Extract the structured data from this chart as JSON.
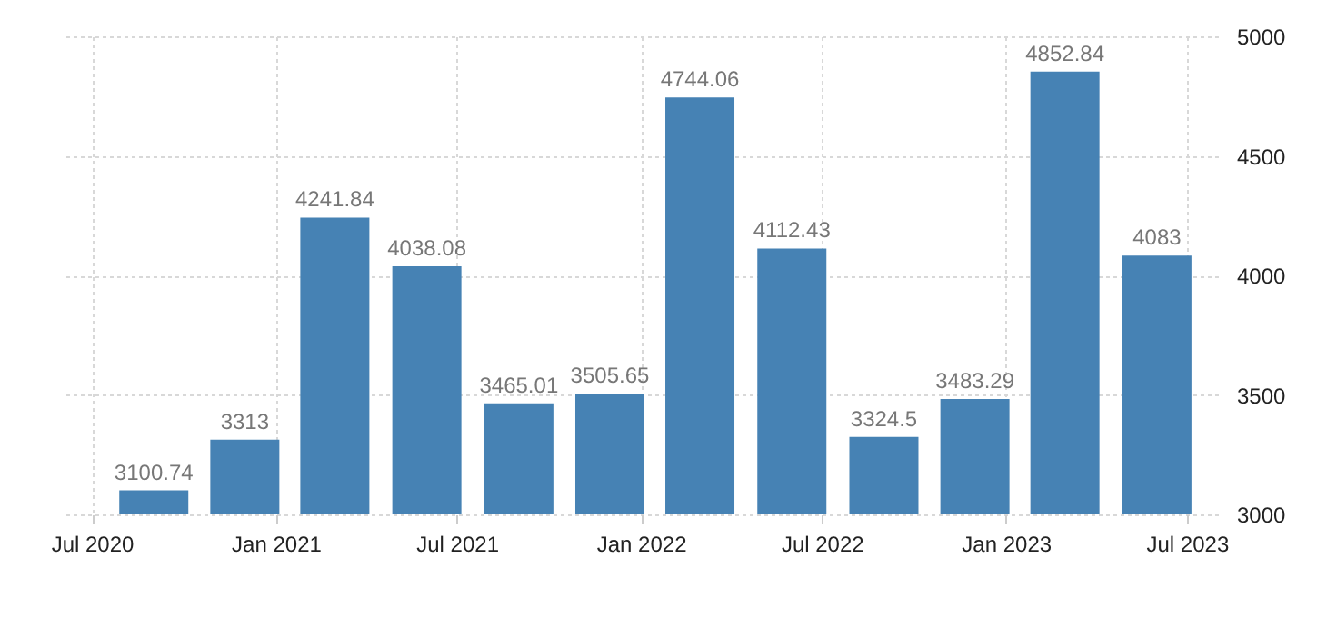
{
  "chart_data": {
    "type": "bar",
    "x": [
      "2020-09",
      "2020-12",
      "2021-03",
      "2021-06",
      "2021-09",
      "2021-12",
      "2022-03",
      "2022-06",
      "2022-09",
      "2022-12",
      "2023-03",
      "2023-06"
    ],
    "values": [
      3100.74,
      3313,
      4241.84,
      4038.08,
      3465.01,
      3505.65,
      4744.06,
      4112.43,
      3324.5,
      3483.29,
      4852.84,
      4083
    ],
    "color": "#4682b4",
    "data_labels": true,
    "xlim": [
      "2020-06",
      "2023-08"
    ],
    "xticks": [
      {
        "value": "2020-07",
        "label": "Jul 2020"
      },
      {
        "value": "2021-01",
        "label": "Jan 2021"
      },
      {
        "value": "2021-07",
        "label": "Jul 2021"
      },
      {
        "value": "2022-01",
        "label": "Jan 2022"
      },
      {
        "value": "2022-07",
        "label": "Jul 2022"
      },
      {
        "value": "2023-01",
        "label": "Jan 2023"
      },
      {
        "value": "2023-07",
        "label": "Jul 2023"
      }
    ],
    "ylim": [
      3000,
      5000
    ],
    "yticks": [
      3000,
      3500,
      4000,
      4500,
      5000
    ],
    "grid": true
  }
}
